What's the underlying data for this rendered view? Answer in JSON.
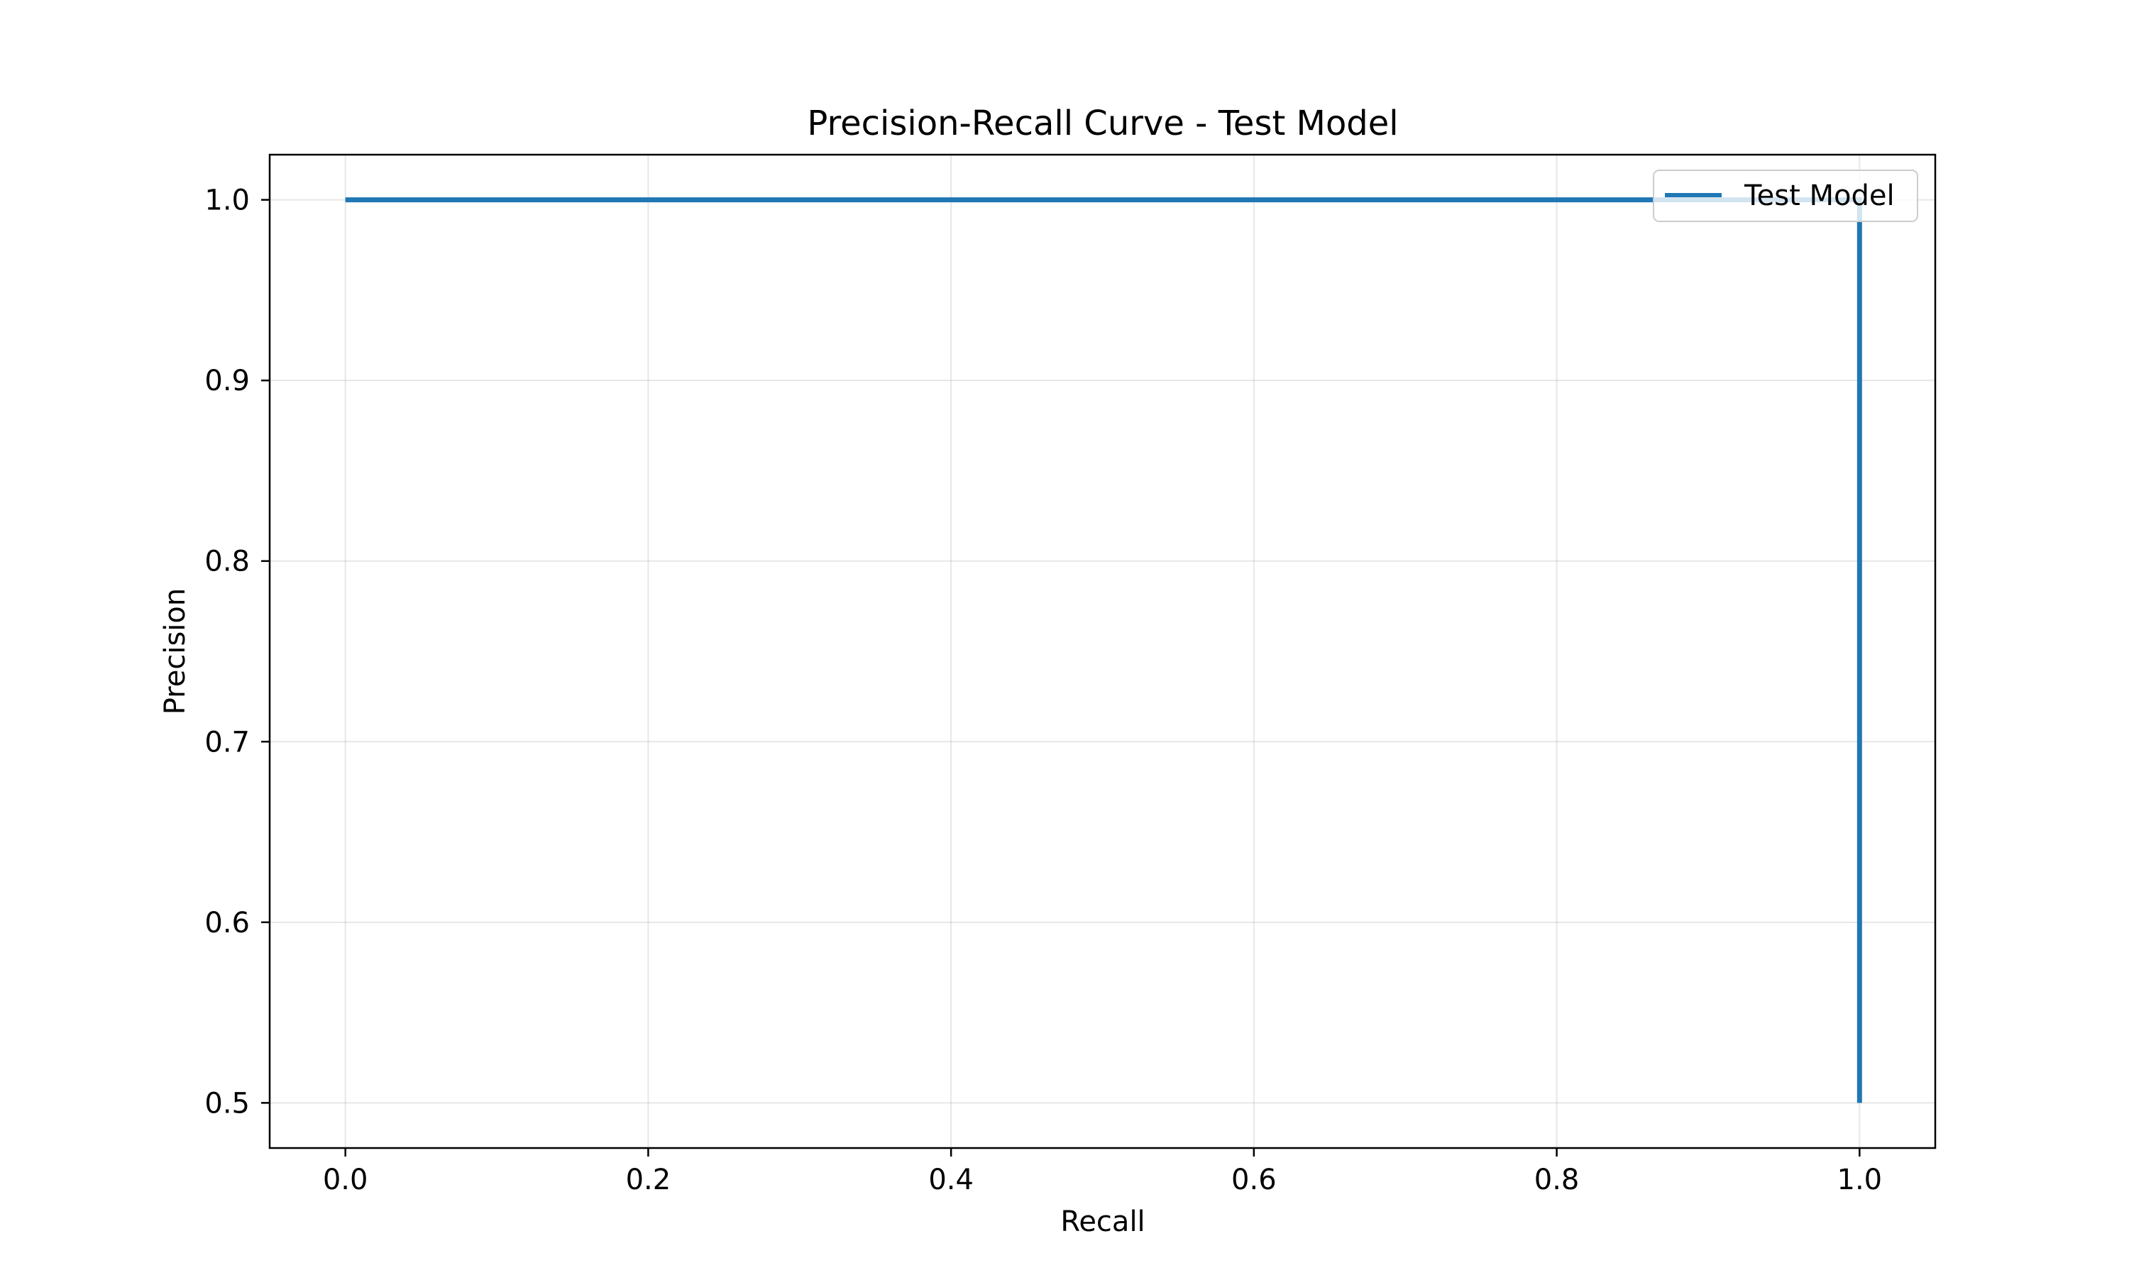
{
  "chart_data": {
    "type": "line",
    "title": "Precision-Recall Curve - Test Model",
    "xlabel": "Recall",
    "ylabel": "Precision",
    "xlim": [
      -0.05,
      1.05
    ],
    "ylim": [
      0.475,
      1.025
    ],
    "xticks": [
      0.0,
      0.2,
      0.4,
      0.6,
      0.8,
      1.0
    ],
    "xtick_labels": [
      "0.0",
      "0.2",
      "0.4",
      "0.6",
      "0.8",
      "1.0"
    ],
    "yticks": [
      0.5,
      0.6,
      0.7,
      0.8,
      0.9,
      1.0
    ],
    "ytick_labels": [
      "0.5",
      "0.6",
      "0.7",
      "0.8",
      "0.9",
      "1.0"
    ],
    "grid": true,
    "legend": {
      "placement": "upper right"
    },
    "series": [
      {
        "name": "Test Model",
        "color": "#1f77b4",
        "x": [
          0.0,
          1.0,
          1.0
        ],
        "y": [
          1.0,
          1.0,
          0.5
        ]
      }
    ]
  }
}
